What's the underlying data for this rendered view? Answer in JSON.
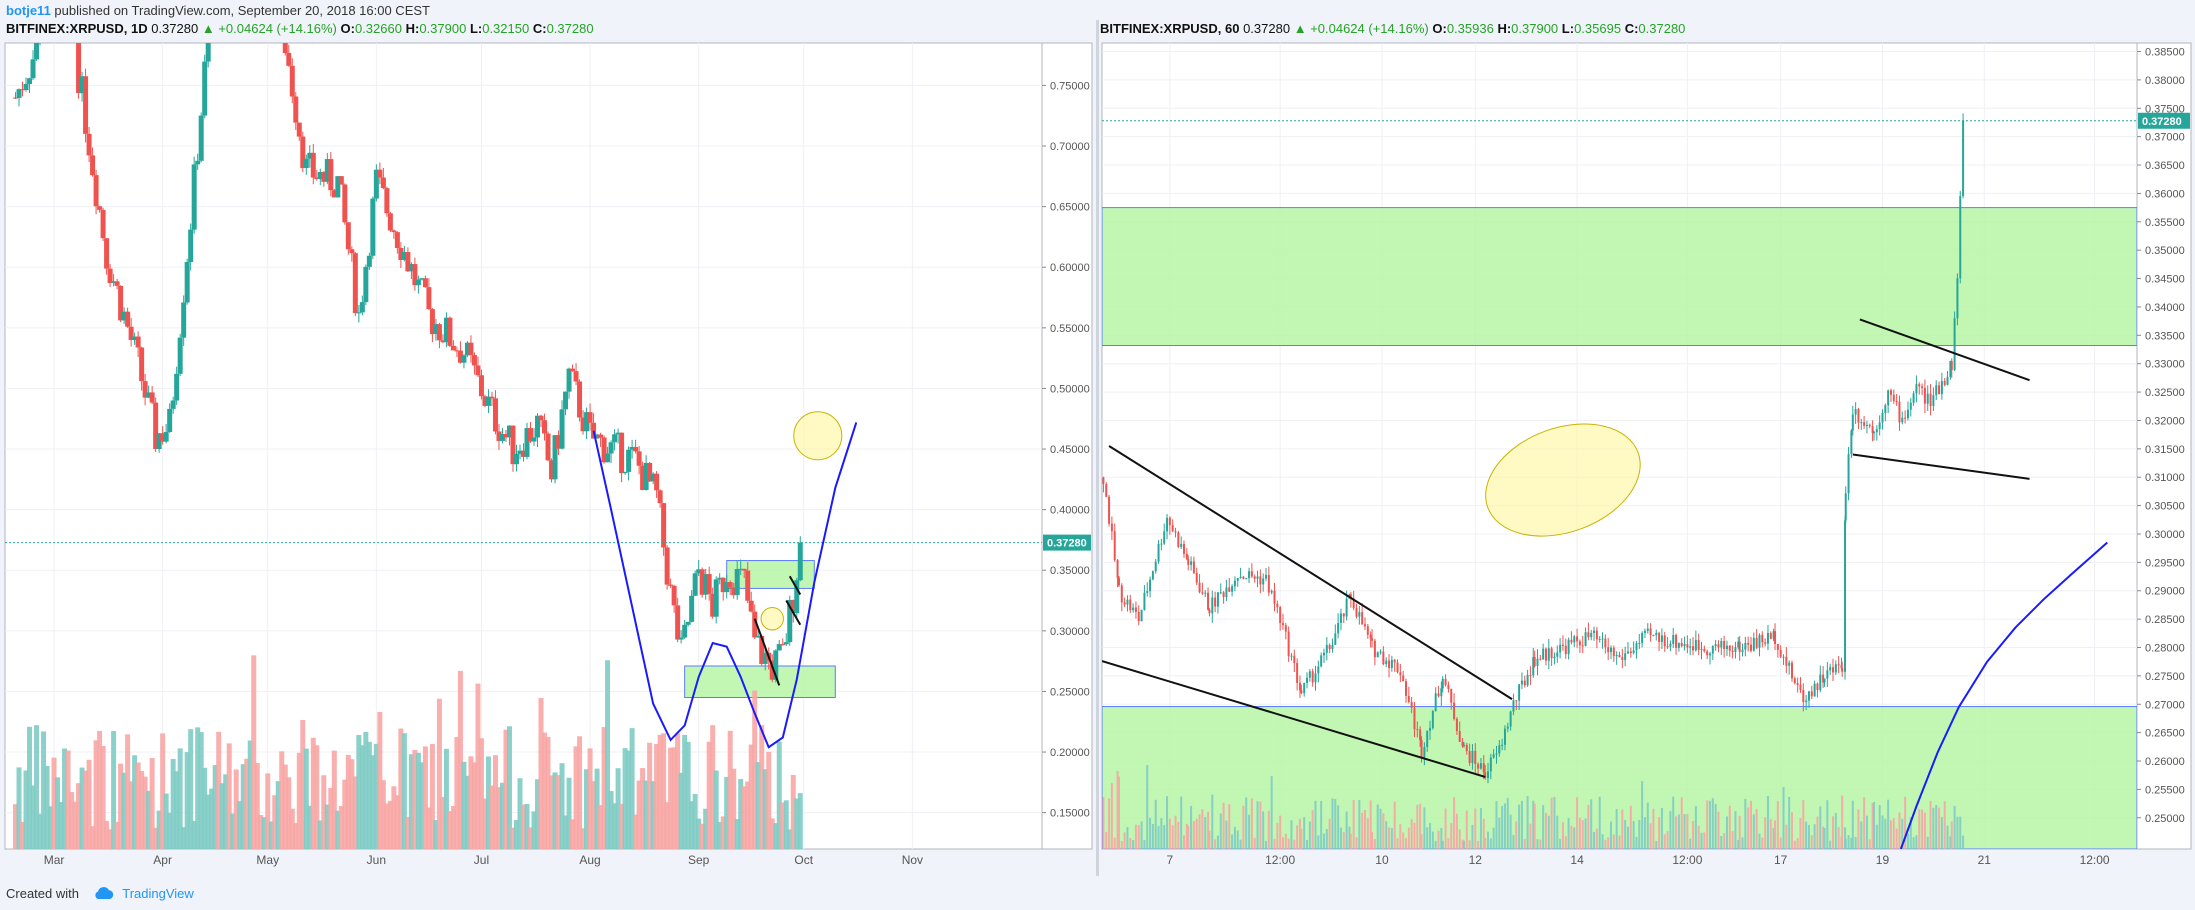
{
  "publish": {
    "user": "botje11",
    "text": "published on TradingView.com, September 20, 2018 16:00 CEST"
  },
  "footer": {
    "created_with": "Created with",
    "brand": "TradingView"
  },
  "colors": {
    "up": "#26a69a",
    "down": "#ef5350",
    "vol_up": "#80cbc4",
    "vol_down": "#f7a6a4",
    "zone": "#b6f5a6",
    "curve": "#1a1aff",
    "price_line": "#26a69a",
    "highlight": "#fff59d"
  },
  "chart_data": [
    {
      "type": "candlestick",
      "symbol": "BITFINEX:XRPUSD",
      "interval": "1D",
      "last": "0.37280",
      "change_icon": "up-triangle-icon",
      "change": "+0.04624 (+14.16%)",
      "ohlc": [
        {
          "k": "O:",
          "v": "0.32660"
        },
        {
          "k": "H:",
          "v": "0.37900"
        },
        {
          "k": "L:",
          "v": "0.32150"
        },
        {
          "k": "C:",
          "v": "0.37280"
        }
      ],
      "y_ticks": [
        "0.75000",
        "0.70000",
        "0.65000",
        "0.60000",
        "0.55000",
        "0.50000",
        "0.45000",
        "0.40000",
        "0.35000",
        "0.30000",
        "0.25000",
        "0.20000",
        "0.15000"
      ],
      "y_tick_values": [
        0.75,
        0.7,
        0.65,
        0.6,
        0.55,
        0.5,
        0.45,
        0.4,
        0.35,
        0.3,
        0.25,
        0.2,
        0.15
      ],
      "ylim": [
        0.12,
        0.785
      ],
      "x_ticks": [
        "Mar",
        "Apr",
        "May",
        "Jun",
        "Jul",
        "Aug",
        "Sep",
        "Oct",
        "Nov"
      ],
      "x_tick_days": [
        11,
        42,
        72,
        103,
        133,
        164,
        195,
        225,
        256
      ],
      "xlim": [
        -3,
        293
      ],
      "price_label": "0.37280",
      "price_value": 0.3728,
      "grid": true,
      "key_closes": [
        {
          "day": 0,
          "v": 0.74
        },
        {
          "day": 6,
          "v": 0.78
        },
        {
          "day": 14,
          "v": 0.9
        },
        {
          "day": 18,
          "v": 0.76
        },
        {
          "day": 26,
          "v": 0.61
        },
        {
          "day": 35,
          "v": 0.52
        },
        {
          "day": 40,
          "v": 0.46
        },
        {
          "day": 44,
          "v": 0.47
        },
        {
          "day": 50,
          "v": 0.64
        },
        {
          "day": 57,
          "v": 0.85
        },
        {
          "day": 66,
          "v": 0.88
        },
        {
          "day": 75,
          "v": 0.82
        },
        {
          "day": 83,
          "v": 0.68
        },
        {
          "day": 92,
          "v": 0.67
        },
        {
          "day": 98,
          "v": 0.56
        },
        {
          "day": 103,
          "v": 0.67
        },
        {
          "day": 110,
          "v": 0.62
        },
        {
          "day": 118,
          "v": 0.56
        },
        {
          "day": 128,
          "v": 0.53
        },
        {
          "day": 136,
          "v": 0.48
        },
        {
          "day": 142,
          "v": 0.45
        },
        {
          "day": 149,
          "v": 0.47
        },
        {
          "day": 153,
          "v": 0.43
        },
        {
          "day": 158,
          "v": 0.51
        },
        {
          "day": 164,
          "v": 0.46
        },
        {
          "day": 170,
          "v": 0.45
        },
        {
          "day": 177,
          "v": 0.44
        },
        {
          "day": 183,
          "v": 0.41
        },
        {
          "day": 187,
          "v": 0.33
        },
        {
          "day": 190,
          "v": 0.28
        },
        {
          "day": 195,
          "v": 0.35
        },
        {
          "day": 199,
          "v": 0.32
        },
        {
          "day": 203,
          "v": 0.35
        },
        {
          "day": 208,
          "v": 0.34
        },
        {
          "day": 211,
          "v": 0.29
        },
        {
          "day": 216,
          "v": 0.27
        },
        {
          "day": 219,
          "v": 0.28
        },
        {
          "day": 222,
          "v": 0.33
        },
        {
          "day": 224,
          "v": 0.3728
        }
      ],
      "volume_max_ratio": 0.3,
      "zones": [
        {
          "d0": 203,
          "d1": 228,
          "v0": 0.335,
          "v1": 0.358
        },
        {
          "d0": 191,
          "d1": 234,
          "v0": 0.245,
          "v1": 0.271
        }
      ],
      "curve": [
        [
          165,
          0.465
        ],
        [
          170,
          0.4
        ],
        [
          176,
          0.32
        ],
        [
          182,
          0.24
        ],
        [
          187,
          0.21
        ],
        [
          191,
          0.222
        ],
        [
          195,
          0.262
        ],
        [
          199,
          0.29
        ],
        [
          203,
          0.287
        ],
        [
          207,
          0.262
        ],
        [
          211,
          0.232
        ],
        [
          215,
          0.204
        ],
        [
          219,
          0.212
        ],
        [
          223,
          0.26
        ],
        [
          228,
          0.34
        ],
        [
          234,
          0.418
        ],
        [
          240,
          0.472
        ]
      ],
      "circles": [
        {
          "day": 229,
          "v": 0.461,
          "r": 15
        },
        {
          "day": 216,
          "v": 0.31,
          "r": 7
        }
      ],
      "trend_lines": [
        [
          [
            211,
            0.31
          ],
          [
            218,
            0.255
          ]
        ],
        [
          [
            220,
            0.325
          ],
          [
            224,
            0.305
          ]
        ],
        [
          [
            221,
            0.345
          ],
          [
            224,
            0.33
          ]
        ]
      ]
    },
    {
      "type": "candlestick",
      "symbol": "BITFINEX:XRPUSD",
      "interval": "60",
      "last": "0.37280",
      "change_icon": "up-triangle-icon",
      "change": "+0.04624 (+14.16%)",
      "ohlc": [
        {
          "k": "O:",
          "v": "0.35936"
        },
        {
          "k": "H:",
          "v": "0.37900"
        },
        {
          "k": "L:",
          "v": "0.35695"
        },
        {
          "k": "C:",
          "v": "0.37280"
        }
      ],
      "y_ticks": [
        "0.38500",
        "0.38000",
        "0.37500",
        "0.37000",
        "0.36500",
        "0.36000",
        "0.35500",
        "0.35000",
        "0.34500",
        "0.34000",
        "0.33500",
        "0.33000",
        "0.32500",
        "0.32000",
        "0.31500",
        "0.31000",
        "0.30500",
        "0.30000",
        "0.29500",
        "0.29000",
        "0.28500",
        "0.28000",
        "0.27500",
        "0.27000",
        "0.26500",
        "0.26000",
        "0.25500",
        "0.25000"
      ],
      "y_tick_values": [
        0.385,
        0.38,
        0.375,
        0.37,
        0.365,
        0.36,
        0.355,
        0.35,
        0.345,
        0.34,
        0.335,
        0.33,
        0.325,
        0.32,
        0.315,
        0.31,
        0.305,
        0.3,
        0.295,
        0.29,
        0.285,
        0.28,
        0.275,
        0.27,
        0.265,
        0.26,
        0.255,
        0.25
      ],
      "ylim": [
        0.2445,
        0.3865
      ],
      "x_ticks": [
        "7",
        "12:00",
        "10",
        "12",
        "14",
        "12:00",
        "17",
        "19",
        "21",
        "12:00"
      ],
      "x_tick_hours": [
        144,
        300,
        444,
        576,
        720,
        876,
        1008,
        1152,
        1296,
        1452
      ],
      "xlim": [
        48,
        1512
      ],
      "price_label": "0.37280",
      "price_value": 0.3728,
      "grid": true,
      "key_closes": [
        {
          "h": 50,
          "v": 0.31
        },
        {
          "h": 72,
          "v": 0.29
        },
        {
          "h": 100,
          "v": 0.285
        },
        {
          "h": 140,
          "v": 0.303
        },
        {
          "h": 170,
          "v": 0.295
        },
        {
          "h": 200,
          "v": 0.287
        },
        {
          "h": 240,
          "v": 0.293
        },
        {
          "h": 280,
          "v": 0.292
        },
        {
          "h": 300,
          "v": 0.285
        },
        {
          "h": 330,
          "v": 0.272
        },
        {
          "h": 370,
          "v": 0.28
        },
        {
          "h": 400,
          "v": 0.289
        },
        {
          "h": 430,
          "v": 0.28
        },
        {
          "h": 470,
          "v": 0.276
        },
        {
          "h": 500,
          "v": 0.262
        },
        {
          "h": 530,
          "v": 0.275
        },
        {
          "h": 560,
          "v": 0.262
        },
        {
          "h": 590,
          "v": 0.258
        },
        {
          "h": 610,
          "v": 0.262
        },
        {
          "h": 630,
          "v": 0.27
        },
        {
          "h": 660,
          "v": 0.278
        },
        {
          "h": 700,
          "v": 0.28
        },
        {
          "h": 740,
          "v": 0.282
        },
        {
          "h": 780,
          "v": 0.278
        },
        {
          "h": 820,
          "v": 0.282
        },
        {
          "h": 860,
          "v": 0.281
        },
        {
          "h": 900,
          "v": 0.28
        },
        {
          "h": 950,
          "v": 0.28
        },
        {
          "h": 1000,
          "v": 0.282
        },
        {
          "h": 1020,
          "v": 0.276
        },
        {
          "h": 1040,
          "v": 0.271
        },
        {
          "h": 1070,
          "v": 0.275
        },
        {
          "h": 1095,
          "v": 0.277
        },
        {
          "h": 1100,
          "v": 0.308
        },
        {
          "h": 1110,
          "v": 0.322
        },
        {
          "h": 1140,
          "v": 0.318
        },
        {
          "h": 1160,
          "v": 0.325
        },
        {
          "h": 1180,
          "v": 0.32
        },
        {
          "h": 1200,
          "v": 0.326
        },
        {
          "h": 1220,
          "v": 0.323
        },
        {
          "h": 1250,
          "v": 0.33
        },
        {
          "h": 1258,
          "v": 0.345
        },
        {
          "h": 1262,
          "v": 0.36
        },
        {
          "h": 1266,
          "v": 0.3728
        }
      ],
      "volume_max_ratio": 0.25,
      "zones": [
        {
          "h0": 48,
          "h1": 1512,
          "v0": 0.3332,
          "v1": 0.3575
        },
        {
          "h0": 48,
          "h1": 1512,
          "v0": 0.2445,
          "v1": 0.2696
        }
      ],
      "curve": [
        [
          1178,
          0.2445
        ],
        [
          1200,
          0.252
        ],
        [
          1230,
          0.2615
        ],
        [
          1260,
          0.2695
        ],
        [
          1300,
          0.2775
        ],
        [
          1340,
          0.2835
        ],
        [
          1380,
          0.2885
        ],
        [
          1420,
          0.293
        ],
        [
          1470,
          0.2985
        ]
      ],
      "ellipse": {
        "h": 700,
        "v": 0.3095,
        "rx": 80,
        "ry": 52
      },
      "trend_lines": [
        [
          [
            58,
            0.3155
          ],
          [
            628,
            0.2709
          ]
        ],
        [
          [
            48,
            0.2776
          ],
          [
            590,
            0.2572
          ]
        ],
        [
          [
            1120,
            0.3378
          ],
          [
            1360,
            0.3271
          ]
        ],
        [
          [
            1110,
            0.314
          ],
          [
            1360,
            0.3097
          ]
        ]
      ]
    }
  ]
}
